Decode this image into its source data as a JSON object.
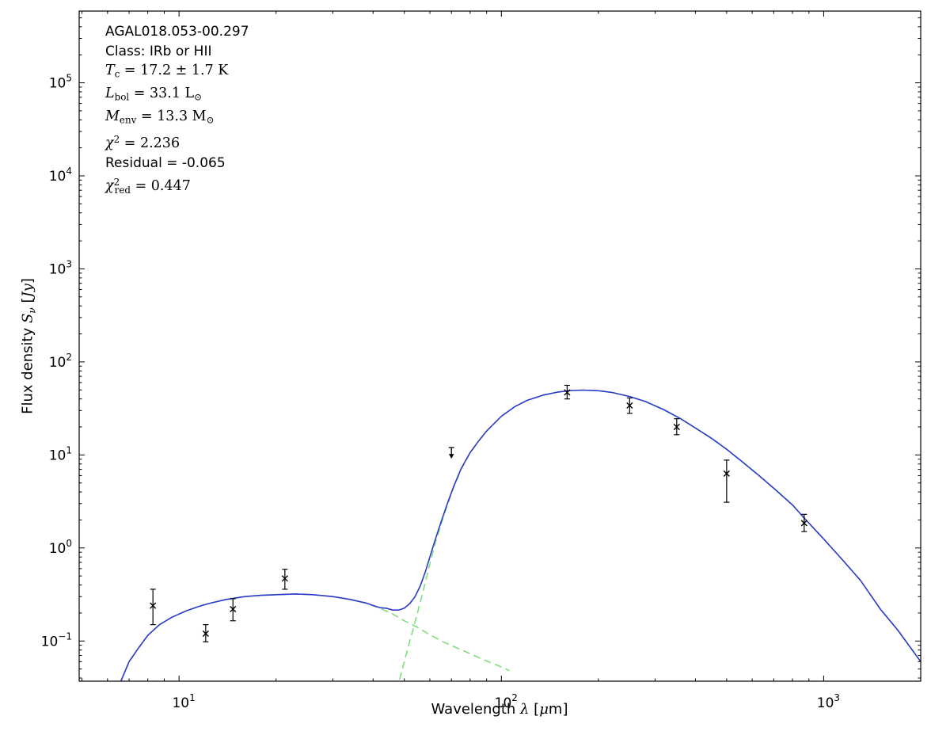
{
  "chart_data": {
    "type": "line",
    "xscale": "log",
    "yscale": "log",
    "xlim": [
      4.9,
      2000
    ],
    "ylim": [
      0.037,
      590000
    ],
    "x_tick_exponents": [
      1,
      2,
      3
    ],
    "y_tick_exponents": [
      -1,
      0,
      1,
      2,
      3,
      4,
      5
    ],
    "grid": false,
    "legend": false,
    "colors": {
      "background": "#ffffff",
      "frame": "#000000",
      "model": "#2b3acc",
      "components": "#7fdd7f",
      "data": "#000000"
    },
    "xlabel_segments": [
      {
        "t": "Wavelength "
      },
      {
        "t": "λ",
        "i": true,
        "f": "serif"
      },
      {
        "t": " ["
      },
      {
        "t": "μ",
        "i": true,
        "f": "serif"
      },
      {
        "t": "m]"
      }
    ],
    "ylabel_segments": [
      {
        "t": "Flux density "
      },
      {
        "t": "S",
        "i": true,
        "f": "serif"
      },
      {
        "t": "ν",
        "i": true,
        "sub": true,
        "f": "serif"
      },
      {
        "t": " ["
      },
      {
        "t": "Jy",
        "i": true,
        "f": "serif"
      },
      {
        "t": "]"
      }
    ],
    "annotations": [
      {
        "font": "sans",
        "segments": [
          {
            "t": "AGAL018.053-00.297"
          }
        ]
      },
      {
        "font": "sans",
        "segments": [
          {
            "t": "Class: IRb or HII"
          }
        ]
      },
      {
        "font": "serif",
        "segments": [
          {
            "t": "T",
            "i": true
          },
          {
            "t": "c",
            "sub": true
          },
          {
            "t": " = 17.2 ± 1.7 K"
          }
        ]
      },
      {
        "font": "serif",
        "segments": [
          {
            "t": "L",
            "i": true
          },
          {
            "t": "bol",
            "sub": true
          },
          {
            "t": " = 33.1 L"
          },
          {
            "t": "⊙",
            "sub": true
          }
        ]
      },
      {
        "font": "serif",
        "segments": [
          {
            "t": "M",
            "i": true
          },
          {
            "t": "env",
            "sub": true
          },
          {
            "t": " = 13.3 M"
          },
          {
            "t": "⊙",
            "sub": true
          }
        ]
      },
      {
        "font": "serif",
        "segments": [
          {
            "t": "χ",
            "i": true
          },
          {
            "t": "2",
            "sup": true
          },
          {
            "t": " = 2.236"
          }
        ]
      },
      {
        "font": "sans",
        "segments": [
          {
            "t": "Residual = -0.065"
          }
        ]
      },
      {
        "font": "serif",
        "segments": [
          {
            "t": "χ",
            "i": true
          },
          {
            "t": "2",
            "sup": true
          },
          {
            "t": "red",
            "sub": true,
            "pull": true
          },
          {
            "t": " = 0.447"
          }
        ]
      }
    ],
    "series": [
      {
        "name": "warm-component",
        "color_key": "components",
        "dash": true,
        "x": [
          6.6,
          7,
          7.5,
          8,
          8.7,
          9.5,
          10.5,
          11.5,
          12.5,
          14,
          16,
          18,
          20,
          23,
          26,
          30,
          34,
          38,
          42,
          46,
          50,
          55,
          60,
          66,
          73,
          80,
          88,
          97,
          106
        ],
        "y": [
          0.037,
          0.06,
          0.085,
          0.115,
          0.15,
          0.18,
          0.21,
          0.235,
          0.255,
          0.28,
          0.3,
          0.31,
          0.315,
          0.32,
          0.315,
          0.3,
          0.28,
          0.255,
          0.225,
          0.195,
          0.165,
          0.14,
          0.117,
          0.098,
          0.084,
          0.073,
          0.063,
          0.055,
          0.048
        ]
      },
      {
        "name": "cold-component",
        "color_key": "components",
        "dash": true,
        "x": [
          44,
          46,
          48,
          50,
          52,
          54,
          56,
          58,
          60,
          62,
          65,
          68,
          71,
          75,
          80,
          85,
          90,
          100,
          110,
          120,
          135,
          150,
          165,
          180,
          200,
          220,
          250,
          280,
          320,
          360,
          400,
          450,
          500,
          560,
          630,
          710,
          800,
          870,
          1000,
          1150,
          1300,
          1500,
          1700,
          2000
        ],
        "y": [
          0.013,
          0.02,
          0.035,
          0.06,
          0.1,
          0.16,
          0.26,
          0.42,
          0.68,
          1.05,
          1.8,
          2.9,
          4.4,
          7.0,
          10.5,
          14,
          18,
          26,
          33,
          38.5,
          44,
          47.5,
          49.3,
          49.8,
          49,
          47,
          42.5,
          37.5,
          30.5,
          24.5,
          19.5,
          15,
          11.5,
          8.4,
          6.0,
          4.2,
          2.9,
          2.1,
          1.25,
          0.73,
          0.45,
          0.22,
          0.13,
          0.06
        ]
      },
      {
        "name": "total-model",
        "color_key": "model",
        "dash": false,
        "x": [
          6.6,
          7,
          7.5,
          8,
          8.7,
          9.5,
          10.5,
          11.5,
          12.5,
          14,
          16,
          18,
          20,
          23,
          26,
          30,
          34,
          38,
          42,
          44,
          46,
          48,
          50,
          52,
          54,
          56,
          58,
          60,
          62,
          65,
          68,
          71,
          75,
          80,
          85,
          90,
          100,
          110,
          120,
          135,
          150,
          165,
          180,
          200,
          220,
          250,
          280,
          320,
          360,
          400,
          450,
          500,
          560,
          630,
          710,
          800,
          870,
          1000,
          1150,
          1300,
          1500,
          1700,
          2000
        ],
        "y": [
          0.037,
          0.06,
          0.085,
          0.115,
          0.15,
          0.18,
          0.21,
          0.235,
          0.255,
          0.28,
          0.3,
          0.31,
          0.315,
          0.32,
          0.315,
          0.3,
          0.28,
          0.256,
          0.228,
          0.225,
          0.215,
          0.215,
          0.225,
          0.253,
          0.3,
          0.39,
          0.545,
          0.8,
          1.16,
          1.9,
          3.0,
          4.5,
          7.1,
          10.6,
          14.1,
          18.1,
          26,
          33,
          38.5,
          44,
          47.5,
          49.3,
          49.8,
          49,
          47,
          42.5,
          37.5,
          30.5,
          24.5,
          19.5,
          15,
          11.5,
          8.4,
          6.0,
          4.2,
          2.9,
          2.1,
          1.25,
          0.73,
          0.45,
          0.22,
          0.13,
          0.06
        ]
      }
    ],
    "points": [
      {
        "x": 8.3,
        "y": 0.24,
        "lo": 0.15,
        "hi": 0.36
      },
      {
        "x": 12.1,
        "y": 0.12,
        "lo": 0.098,
        "hi": 0.15
      },
      {
        "x": 14.7,
        "y": 0.22,
        "lo": 0.165,
        "hi": 0.285
      },
      {
        "x": 21.3,
        "y": 0.47,
        "lo": 0.36,
        "hi": 0.59
      },
      {
        "x": 160,
        "y": 47,
        "lo": 40,
        "hi": 56
      },
      {
        "x": 250,
        "y": 34,
        "lo": 28,
        "hi": 41
      },
      {
        "x": 350,
        "y": 20,
        "lo": 16.5,
        "hi": 24.5
      },
      {
        "x": 500,
        "y": 6.3,
        "lo": 3.1,
        "hi": 8.8
      },
      {
        "x": 870,
        "y": 1.85,
        "lo": 1.5,
        "hi": 2.3
      }
    ],
    "upper_limits": [
      {
        "x": 70,
        "y": 12
      }
    ]
  }
}
